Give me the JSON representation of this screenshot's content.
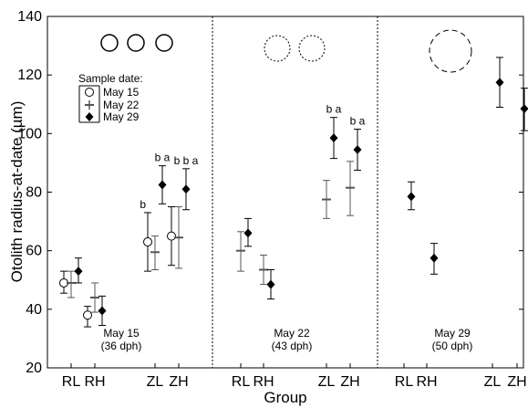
{
  "chart_data": {
    "type": "scatter",
    "subtype": "point-with-error-bars",
    "xlabel": "Group",
    "ylabel": "Otolith radius-at-date (µm)",
    "ylim": [
      20,
      140
    ],
    "yticks": [
      "20",
      "40",
      "60",
      "80",
      "100",
      "120",
      "140"
    ],
    "grid": false,
    "legend": {
      "title": "Sample date:",
      "placement": "top-left of first panel",
      "entries": [
        {
          "label": "May 15",
          "marker": "open-circle"
        },
        {
          "label": "May 22",
          "marker": "plus"
        },
        {
          "label": "May 29",
          "marker": "filled-diamond"
        }
      ]
    },
    "panels": [
      {
        "label": "May 15",
        "sublabel": "(36 dph)",
        "circles": {
          "count": 3,
          "style": "solid",
          "size": "small"
        },
        "groups": [
          "RL",
          "RH",
          "ZL",
          "ZH"
        ],
        "points": [
          {
            "group": "RL",
            "series": "May 15",
            "y": 49,
            "err_low": 45.5,
            "err_high": 53
          },
          {
            "group": "RL",
            "series": "May 22",
            "y": 49,
            "err_low": 44,
            "err_high": 53
          },
          {
            "group": "RL",
            "series": "May 29",
            "y": 53,
            "err_low": 49,
            "err_high": 57.5
          },
          {
            "group": "RH",
            "series": "May 15",
            "y": 38,
            "err_low": 34,
            "err_high": 41
          },
          {
            "group": "RH",
            "series": "May 22",
            "y": 44,
            "err_low": 39,
            "err_high": 49
          },
          {
            "group": "RH",
            "series": "May 29",
            "y": 39.5,
            "err_low": 34.5,
            "err_high": 44.5
          },
          {
            "group": "ZL",
            "series": "May 15",
            "y": 63,
            "err_low": 53,
            "err_high": 73
          },
          {
            "group": "ZL",
            "series": "May 22",
            "y": 59.5,
            "err_low": 53.5,
            "err_high": 65
          },
          {
            "group": "ZL",
            "series": "May 29",
            "y": 82.5,
            "err_low": 76,
            "err_high": 89
          },
          {
            "group": "ZH",
            "series": "May 15",
            "y": 65,
            "err_low": 55,
            "err_high": 75
          },
          {
            "group": "ZH",
            "series": "May 22",
            "y": 64.5,
            "err_low": 54,
            "err_high": 75
          },
          {
            "group": "ZH",
            "series": "May 29",
            "y": 81,
            "err_low": 74,
            "err_high": 88
          }
        ],
        "annotations": [
          {
            "group": "ZL",
            "series": "May 15",
            "text": "b"
          },
          {
            "group": "ZL",
            "series": "May 29",
            "text": "b a"
          },
          {
            "group": "ZH",
            "series": "May 29",
            "text": "b b a"
          }
        ]
      },
      {
        "label": "May 22",
        "sublabel": "(43 dph)",
        "circles": {
          "count": 2,
          "style": "dotted",
          "size": "medium"
        },
        "groups": [
          "RL",
          "RH",
          "ZL",
          "ZH"
        ],
        "points": [
          {
            "group": "RL",
            "series": "May 22",
            "y": 60,
            "err_low": 53,
            "err_high": 66.5
          },
          {
            "group": "RL",
            "series": "May 29",
            "y": 66,
            "err_low": 61.5,
            "err_high": 71
          },
          {
            "group": "RH",
            "series": "May 22",
            "y": 53.5,
            "err_low": 48.5,
            "err_high": 58.5
          },
          {
            "group": "RH",
            "series": "May 29",
            "y": 48.5,
            "err_low": 43.5,
            "err_high": 53.5
          },
          {
            "group": "ZL",
            "series": "May 22",
            "y": 77.5,
            "err_low": 71,
            "err_high": 84
          },
          {
            "group": "ZL",
            "series": "May 29",
            "y": 98.5,
            "err_low": 91.5,
            "err_high": 105.5
          },
          {
            "group": "ZH",
            "series": "May 22",
            "y": 81.5,
            "err_low": 72,
            "err_high": 90.5
          },
          {
            "group": "ZH",
            "series": "May 29",
            "y": 94.5,
            "err_low": 87.5,
            "err_high": 101.5
          }
        ],
        "annotations": [
          {
            "group": "ZL",
            "series": "May 29",
            "text": "b a"
          },
          {
            "group": "ZH",
            "series": "May 29",
            "text": "b a"
          }
        ]
      },
      {
        "label": "May 29",
        "sublabel": "(50 dph)",
        "circles": {
          "count": 1,
          "style": "dashed",
          "size": "large"
        },
        "groups": [
          "RL",
          "RH",
          "ZL",
          "ZH"
        ],
        "points": [
          {
            "group": "RL",
            "series": "May 29",
            "y": 78.5,
            "err_low": 74,
            "err_high": 83.5
          },
          {
            "group": "RH",
            "series": "May 29",
            "y": 57.5,
            "err_low": 52,
            "err_high": 62.5
          },
          {
            "group": "ZL",
            "series": "May 29",
            "y": 117.5,
            "err_low": 109,
            "err_high": 126
          },
          {
            "group": "ZH",
            "series": "May 29",
            "y": 108.5,
            "err_low": 101,
            "err_high": 115.5
          }
        ],
        "annotations": []
      }
    ]
  }
}
